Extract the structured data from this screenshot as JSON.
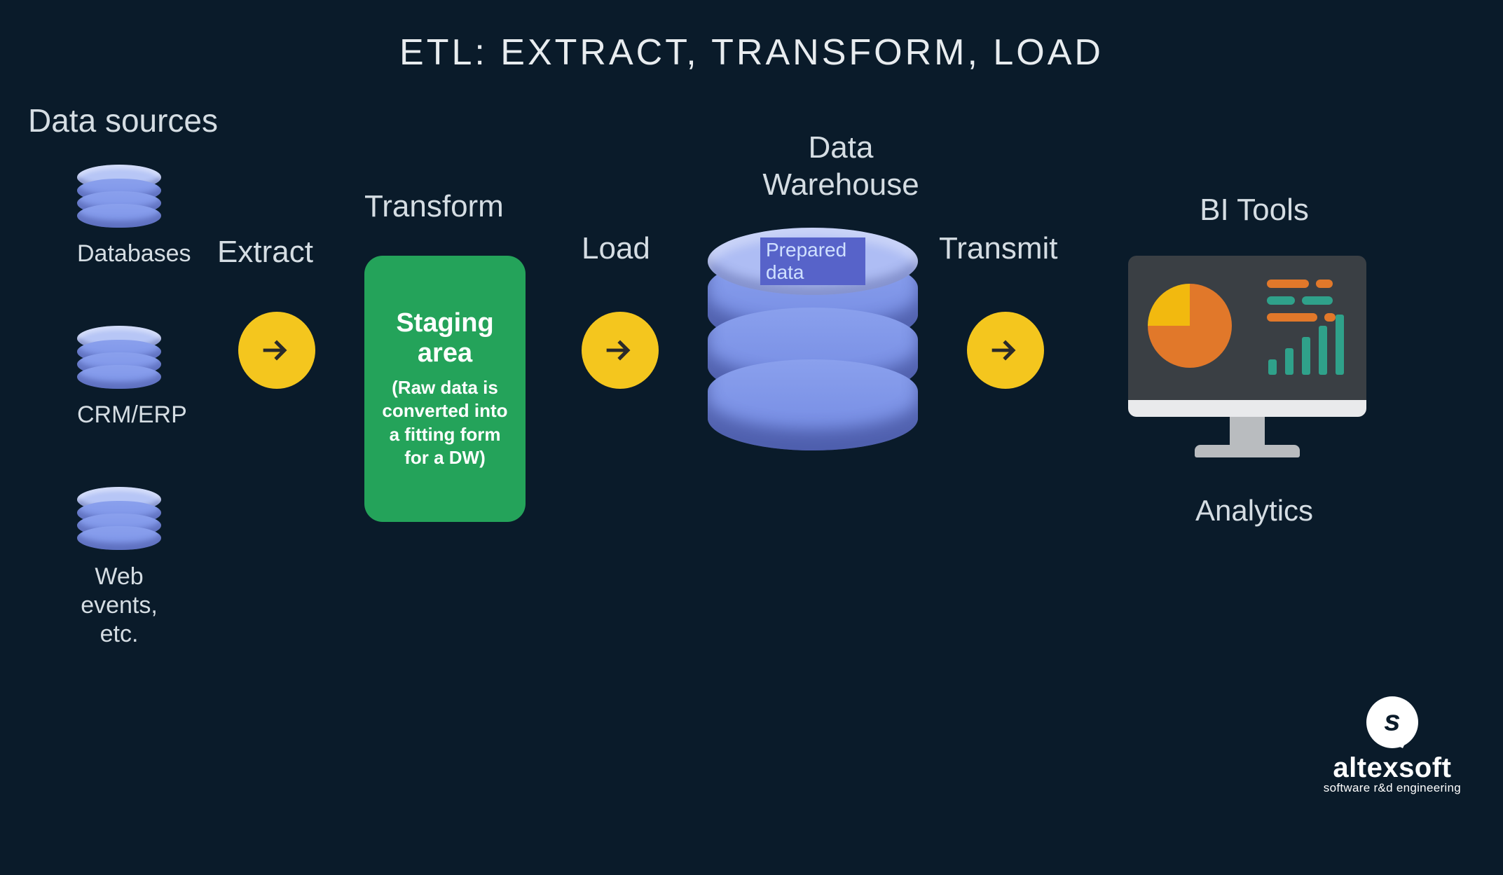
{
  "title": "ETL: EXTRACT, TRANSFORM, LOAD",
  "colors": {
    "background": "#0a1b2a",
    "text": "#d5dde3",
    "cylinder_light": "#aebdf4",
    "cylinder_base": "#8aa0ed",
    "cylinder_shadow": "#4a5bb8",
    "arrow_bg": "#f4c61e",
    "arrow_fg": "#2a2a2a",
    "staging_bg": "#24a35a",
    "prepared_bg": "#5763c9",
    "prepared_text": "#cfe0ff",
    "monitor_screen": "#3a3f44",
    "monitor_bezel": "#e9eaec",
    "monitor_stand": "#b9bcbf",
    "pie_slice": "#f2b90f",
    "pie_rest": "#e1782a",
    "dash_orange": "#e1782a",
    "dash_teal": "#2fa18a"
  },
  "sources": {
    "heading": "Data sources",
    "items": [
      {
        "label": "Databases"
      },
      {
        "label": "CRM/ERP"
      },
      {
        "label": "Web events, etc."
      }
    ]
  },
  "steps": {
    "extract": "Extract",
    "transform": "Transform",
    "load": "Load",
    "transmit": "Transmit"
  },
  "staging": {
    "title": "Staging area",
    "subtitle": "(Raw data is converted into a fitting form for a DW)"
  },
  "warehouse": {
    "heading": "Data Warehouse",
    "prepared": "Prepared data"
  },
  "bi": {
    "heading": "BI Tools",
    "footer": "Analytics",
    "pie": {
      "slice_deg": 90
    },
    "dash_rows": [
      {
        "c": "orange",
        "w1": 60,
        "w2": 24
      },
      {
        "c": "teal",
        "w1": 40,
        "w2": 44
      },
      {
        "c": "orange",
        "w1": 72,
        "w2": 16
      }
    ],
    "bars": [
      22,
      38,
      54,
      70,
      86
    ]
  },
  "brand": {
    "name": "altexsoft",
    "tag": "software r&d engineering",
    "glyph": "s"
  }
}
